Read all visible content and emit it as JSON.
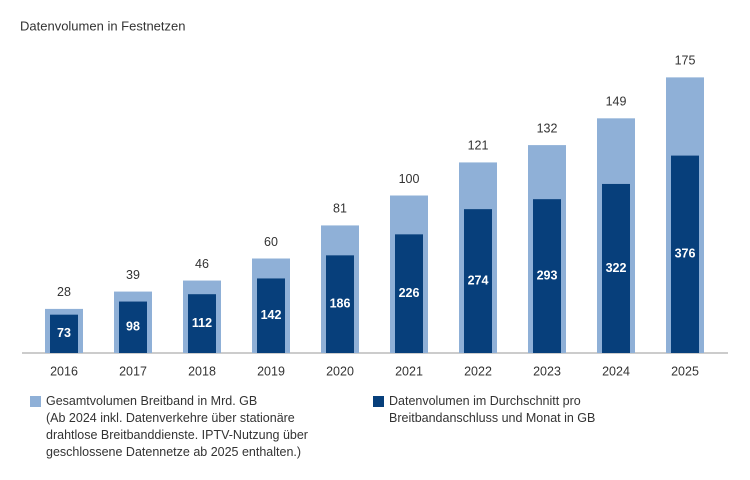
{
  "chart_data": {
    "type": "overlay_bar",
    "title": "Datenvolumen in Festnetzen",
    "categories": [
      "2016",
      "2017",
      "2018",
      "2019",
      "2020",
      "2021",
      "2022",
      "2023",
      "2024",
      "2025"
    ],
    "ylim": [
      0,
      200
    ],
    "y2lim": [
      0,
      600
    ],
    "series": [
      {
        "name": "Gesamtvolumen Breitband in Mrd. GB",
        "color": "#8fb0d7",
        "values": [
          28,
          39,
          46,
          60,
          81,
          100,
          121,
          132,
          149,
          175
        ]
      },
      {
        "name": "Datenvolumen im Durchschnitt pro Breitbandanschluss und Monat in GB",
        "color": "#073f7b",
        "axis": "y2",
        "values": [
          73,
          98,
          112,
          142,
          186,
          226,
          274,
          293,
          322,
          376
        ]
      }
    ],
    "legend_note": "(Ab 2024 inkl. Datenverkehre über stationäre drahtlose Breitbanddienste. IPTV-Nutzung über geschlossene Datennetze ab 2025 enthalten.)"
  }
}
